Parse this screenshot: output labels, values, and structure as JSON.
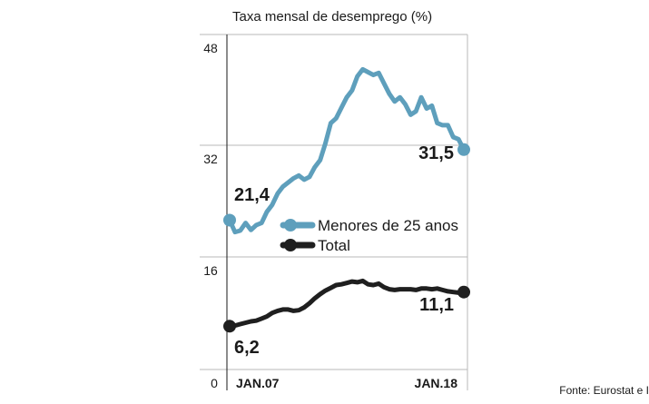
{
  "chart_data": {
    "type": "line",
    "title": "Taxa mensal de desemprego (%)",
    "source": "Fonte: Eurostat e I",
    "x_labels": [
      "JAN.07",
      "JAN.18"
    ],
    "y_ticks": [
      "48",
      "32",
      "16",
      "0"
    ],
    "ylim": [
      0,
      48
    ],
    "grid": true,
    "legend_position": "center-right",
    "series": [
      {
        "name": "Menores de 25 anos",
        "color": "#5e9fbc",
        "start_label": "21,4",
        "end_label": "31,5",
        "x": [
          2007.0,
          2007.25,
          2007.5,
          2007.75,
          2008.0,
          2008.25,
          2008.5,
          2008.75,
          2009.0,
          2009.25,
          2009.5,
          2009.75,
          2010.0,
          2010.25,
          2010.5,
          2010.75,
          2011.0,
          2011.25,
          2011.5,
          2011.75,
          2012.0,
          2012.25,
          2012.5,
          2012.75,
          2013.0,
          2013.25,
          2013.5,
          2013.75,
          2014.0,
          2014.25,
          2014.5,
          2014.75,
          2015.0,
          2015.25,
          2015.5,
          2015.75,
          2016.0,
          2016.25,
          2016.5,
          2016.75,
          2017.0,
          2017.25,
          2017.5,
          2017.75,
          2018.0
        ],
        "values": [
          21.4,
          19.7,
          19.9,
          21.0,
          20.0,
          20.7,
          21.0,
          22.6,
          23.6,
          25.2,
          26.2,
          26.8,
          27.4,
          27.8,
          27.2,
          27.6,
          29.0,
          30.0,
          32.4,
          35.3,
          36.0,
          37.5,
          39.0,
          40.0,
          42.0,
          43.0,
          42.6,
          42.2,
          42.5,
          41.0,
          39.5,
          38.4,
          39.0,
          38.0,
          36.5,
          37.0,
          39.0,
          37.4,
          37.8,
          35.3,
          35.0,
          35.0,
          33.3,
          33.0,
          31.5
        ]
      },
      {
        "name": "Total",
        "color": "#1f1f1f",
        "start_label": "6,2",
        "end_label": "11,1",
        "x": [
          2007.0,
          2007.25,
          2007.5,
          2007.75,
          2008.0,
          2008.25,
          2008.5,
          2008.75,
          2009.0,
          2009.25,
          2009.5,
          2009.75,
          2010.0,
          2010.25,
          2010.5,
          2010.75,
          2011.0,
          2011.25,
          2011.5,
          2011.75,
          2012.0,
          2012.25,
          2012.5,
          2012.75,
          2013.0,
          2013.25,
          2013.5,
          2013.75,
          2014.0,
          2014.25,
          2014.5,
          2014.75,
          2015.0,
          2015.25,
          2015.5,
          2015.75,
          2016.0,
          2016.25,
          2016.5,
          2016.75,
          2017.0,
          2017.25,
          2017.5,
          2017.75,
          2018.0
        ],
        "values": [
          6.2,
          6.3,
          6.5,
          6.7,
          6.9,
          7.0,
          7.3,
          7.6,
          8.1,
          8.4,
          8.6,
          8.6,
          8.4,
          8.5,
          8.9,
          9.5,
          10.2,
          10.8,
          11.3,
          11.7,
          12.1,
          12.2,
          12.4,
          12.6,
          12.5,
          12.7,
          12.2,
          12.1,
          12.3,
          11.8,
          11.5,
          11.4,
          11.5,
          11.5,
          11.5,
          11.4,
          11.6,
          11.6,
          11.5,
          11.6,
          11.4,
          11.2,
          11.1,
          11.0,
          11.1
        ]
      }
    ]
  }
}
